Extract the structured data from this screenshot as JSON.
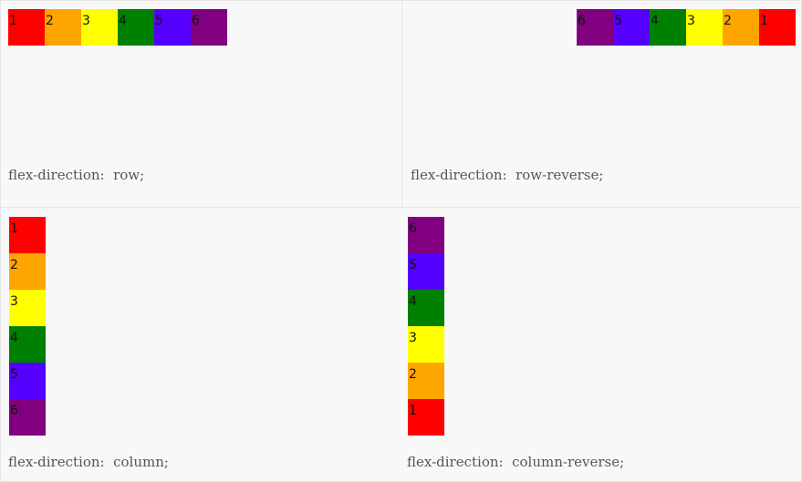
{
  "colors": {
    "item_1": "#ff0000",
    "item_2": "#ffa500",
    "item_3": "#ffff00",
    "item_4": "#008000",
    "item_5": "#5500ff",
    "item_6": "#800080",
    "panel_bg": "#f8f8f8",
    "caption_text": "#555555"
  },
  "items": [
    {
      "label": "1",
      "color": "#ff0000"
    },
    {
      "label": "2",
      "color": "#ffa500"
    },
    {
      "label": "3",
      "color": "#ffff00"
    },
    {
      "label": "4",
      "color": "#008000"
    },
    {
      "label": "5",
      "color": "#5500ff"
    },
    {
      "label": "6",
      "color": "#800080"
    }
  ],
  "panels": {
    "row": {
      "caption": "flex-direction:  row;"
    },
    "row_reverse": {
      "caption": "flex-direction:  row-reverse;"
    },
    "column": {
      "caption": "flex-direction:  column;"
    },
    "column_reverse": {
      "caption": "flex-direction:  column-reverse;"
    }
  }
}
